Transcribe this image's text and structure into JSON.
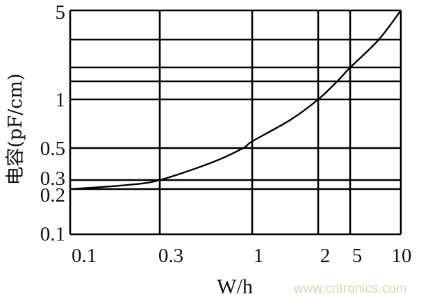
{
  "chart_data": {
    "type": "line",
    "title": "",
    "xlabel": "W/h",
    "ylabel": "电容(pF/cm)",
    "x_ticks": [
      "0.1",
      "0.3",
      "1",
      "2",
      "5",
      "10"
    ],
    "y_ticks": [
      "0.1",
      "0.2",
      "0.3",
      "0.5",
      "1",
      "5"
    ],
    "xlim": [
      0.1,
      10
    ],
    "ylim": [
      0.1,
      5
    ],
    "grid": true,
    "series": [
      {
        "x": [
          0.1,
          0.2,
          0.3,
          0.6,
          0.89,
          1,
          1.5,
          2,
          3.5,
          5,
          7.4,
          10
        ],
        "y": [
          0.2,
          0.24,
          0.3,
          0.4,
          0.5,
          0.55,
          0.75,
          1,
          1.4,
          1.78,
          2.95,
          5
        ]
      }
    ],
    "colors": {
      "line": "#000000",
      "grid": "#000000",
      "watermark": "#c9ddb6"
    }
  },
  "watermark": "www.cntronics.com"
}
